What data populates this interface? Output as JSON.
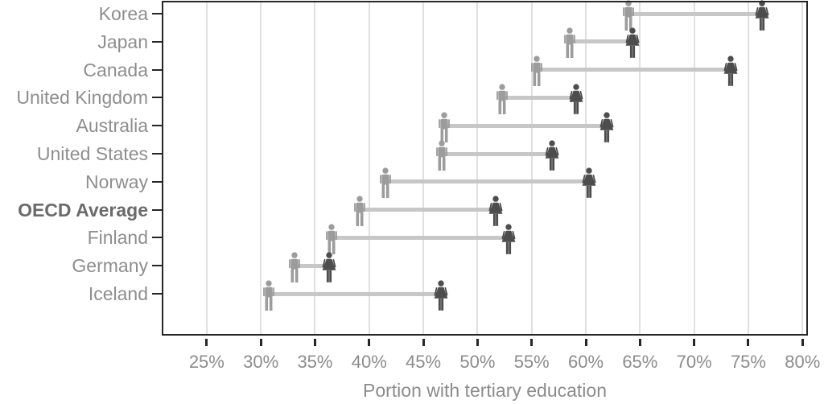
{
  "chart_data": {
    "type": "scatter",
    "subtype": "dumbbell-pictogram",
    "title": "",
    "xlabel": "Portion with tertiary education",
    "ylabel": "",
    "categories": [
      "Korea",
      "Japan",
      "Canada",
      "United Kingdom",
      "Australia",
      "United States",
      "Norway",
      "OECD Average",
      "Finland",
      "Germany",
      "Iceland"
    ],
    "emphasized_category": "OECD Average",
    "series": [
      {
        "name": "Men",
        "marker": "male-pictogram",
        "color": "#9c9c9c",
        "values": [
          63.9,
          58.5,
          55.5,
          52.3,
          46.9,
          46.7,
          41.5,
          39.1,
          36.5,
          33.1,
          30.7
        ]
      },
      {
        "name": "Women",
        "marker": "female-pictogram",
        "color": "#4d4d4d",
        "values": [
          76.3,
          64.3,
          73.4,
          59.1,
          61.9,
          56.9,
          60.3,
          51.7,
          52.9,
          36.3,
          46.6
        ]
      }
    ],
    "x_axis": {
      "min": 21,
      "max": 80.35,
      "tick_values": [
        25,
        30,
        35,
        40,
        45,
        50,
        55,
        60,
        65,
        70,
        75,
        80
      ],
      "tick_labels": [
        "25%",
        "30%",
        "35%",
        "40%",
        "45%",
        "50%",
        "55%",
        "60%",
        "65%",
        "70%",
        "75%",
        "80%"
      ],
      "unit": "%"
    },
    "grid": true,
    "legend": "none",
    "connector_color": "#c7c7c7",
    "colors": {
      "axis": "#262626",
      "gridline": "#e0e0e0",
      "label_gray": "#8e8e8e",
      "emphasized_label": "#6b6b6b"
    }
  }
}
